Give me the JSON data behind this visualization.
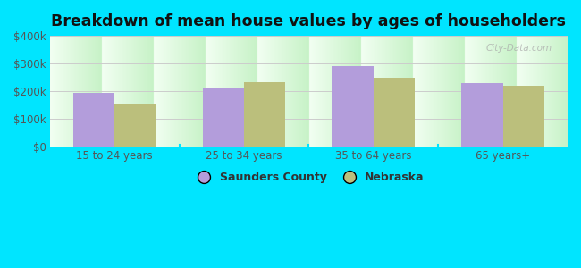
{
  "categories": [
    "15 to 24 years",
    "25 to 34 years",
    "35 to 64 years",
    "65 years+"
  ],
  "saunders_values": [
    193000,
    210000,
    290000,
    228000
  ],
  "nebraska_values": [
    155000,
    232000,
    248000,
    220000
  ],
  "saunders_color": "#b39ddb",
  "nebraska_color": "#bbbf7c",
  "title": "Breakdown of mean house values by ages of householders",
  "title_fontsize": 12.5,
  "ylim": [
    0,
    400000
  ],
  "yticks": [
    0,
    100000,
    200000,
    300000,
    400000
  ],
  "ytick_labels": [
    "$0",
    "$100k",
    "$200k",
    "$300k",
    "$400k"
  ],
  "outer_background": "#00e5ff",
  "legend_saunders": "Saunders County",
  "legend_nebraska": "Nebraska",
  "bar_width": 0.32,
  "grid_color": "#cccccc",
  "watermark": "City-Data.com"
}
